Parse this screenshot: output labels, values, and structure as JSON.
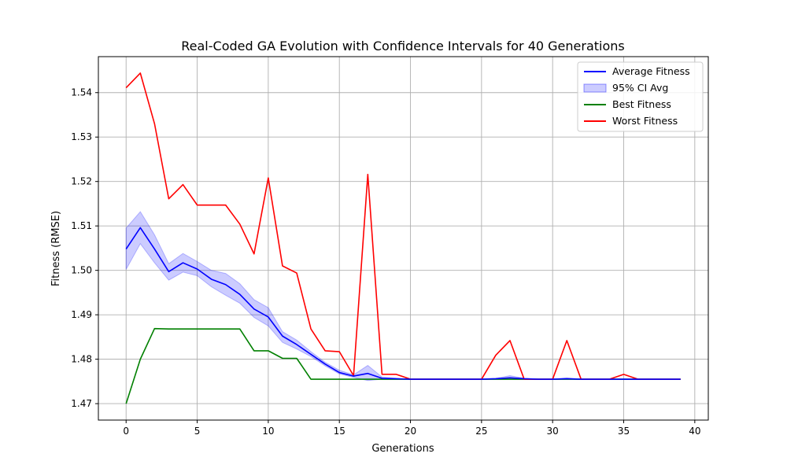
{
  "chart_data": {
    "type": "line",
    "title": "Real-Coded GA Evolution with Confidence Intervals for 40 Generations",
    "xlabel": "Generations",
    "ylabel": "Fitness (RMSE)",
    "xlim": [
      -1.95,
      40.95
    ],
    "ylim": [
      1.4663,
      1.5481
    ],
    "xticks": [
      0,
      5,
      10,
      15,
      20,
      25,
      30,
      35,
      40
    ],
    "yticks": [
      1.47,
      1.48,
      1.49,
      1.5,
      1.51,
      1.52,
      1.53,
      1.54
    ],
    "ytick_labels": [
      "1.47",
      "1.48",
      "1.49",
      "1.50",
      "1.51",
      "1.52",
      "1.53",
      "1.54"
    ],
    "grid": true,
    "legend_position": "top-right",
    "x": [
      0,
      1,
      2,
      3,
      4,
      5,
      6,
      7,
      8,
      9,
      10,
      11,
      12,
      13,
      14,
      15,
      16,
      17,
      18,
      19,
      20,
      21,
      22,
      23,
      24,
      25,
      26,
      27,
      28,
      29,
      30,
      31,
      32,
      33,
      34,
      35,
      36,
      37,
      38,
      39
    ],
    "series": [
      {
        "name": "Average Fitness",
        "color": "#0000ff",
        "values": [
          1.5048,
          1.5096,
          1.5048,
          1.4997,
          1.5017,
          1.5003,
          1.498,
          1.4968,
          1.4946,
          1.4913,
          1.4895,
          1.4852,
          1.4833,
          1.4811,
          1.4789,
          1.477,
          1.4762,
          1.4768,
          1.4757,
          1.4756,
          1.4755,
          1.4755,
          1.4755,
          1.4755,
          1.4755,
          1.4755,
          1.4756,
          1.4758,
          1.4756,
          1.4755,
          1.4755,
          1.4756,
          1.4755,
          1.4755,
          1.4755,
          1.4755,
          1.4755,
          1.4755,
          1.4755,
          1.4755
        ]
      },
      {
        "name": "95% CI Avg",
        "color": "#0000ff",
        "type": "band",
        "lower": [
          1.5002,
          1.506,
          1.5017,
          1.4978,
          1.4996,
          1.4988,
          1.4963,
          1.4944,
          1.4926,
          1.4894,
          1.4875,
          1.4838,
          1.4823,
          1.4806,
          1.4785,
          1.4767,
          1.4759,
          1.4752,
          1.4755,
          1.4755,
          1.4755,
          1.4755,
          1.4755,
          1.4755,
          1.4755,
          1.4755,
          1.4755,
          1.4755,
          1.4755,
          1.4755,
          1.4755,
          1.4755,
          1.4755,
          1.4755,
          1.4755,
          1.4755,
          1.4755,
          1.4755,
          1.4755,
          1.4755
        ],
        "upper": [
          1.5095,
          1.5132,
          1.508,
          1.5015,
          1.5038,
          1.502,
          1.5,
          1.4993,
          1.497,
          1.4934,
          1.4916,
          1.4862,
          1.4843,
          1.4817,
          1.4793,
          1.4775,
          1.4765,
          1.4786,
          1.476,
          1.4757,
          1.4755,
          1.4755,
          1.4755,
          1.4755,
          1.4755,
          1.4755,
          1.4757,
          1.4763,
          1.4757,
          1.4755,
          1.4755,
          1.4758,
          1.4755,
          1.4755,
          1.4755,
          1.4756,
          1.4755,
          1.4755,
          1.4755,
          1.4755
        ]
      },
      {
        "name": "Best Fitness",
        "color": "#008000",
        "values": [
          1.47,
          1.48,
          1.4869,
          1.4868,
          1.4868,
          1.4868,
          1.4868,
          1.4868,
          1.4868,
          1.4819,
          1.4819,
          1.4802,
          1.4802,
          1.4755,
          1.4755,
          1.4755,
          1.4755,
          1.4755,
          1.4755,
          1.4755,
          1.4755,
          1.4755,
          1.4755,
          1.4755,
          1.4755,
          1.4755,
          1.4755,
          1.4755,
          1.4755,
          1.4755,
          1.4755,
          1.4755,
          1.4755,
          1.4755,
          1.4755,
          1.4755,
          1.4755,
          1.4755,
          1.4755,
          1.4755
        ]
      },
      {
        "name": "Worst Fitness",
        "color": "#ff0000",
        "values": [
          1.5411,
          1.5444,
          1.533,
          1.5161,
          1.5193,
          1.5147,
          1.5147,
          1.5147,
          1.5104,
          1.5037,
          1.5208,
          1.501,
          1.4994,
          1.4868,
          1.4819,
          1.4817,
          1.4763,
          1.5216,
          1.4766,
          1.4766,
          1.4755,
          1.4755,
          1.4755,
          1.4755,
          1.4755,
          1.4755,
          1.4809,
          1.4842,
          1.4755,
          1.4755,
          1.4755,
          1.4842,
          1.4755,
          1.4755,
          1.4755,
          1.4766,
          1.4755,
          1.4755,
          1.4755,
          1.4755
        ]
      }
    ]
  }
}
